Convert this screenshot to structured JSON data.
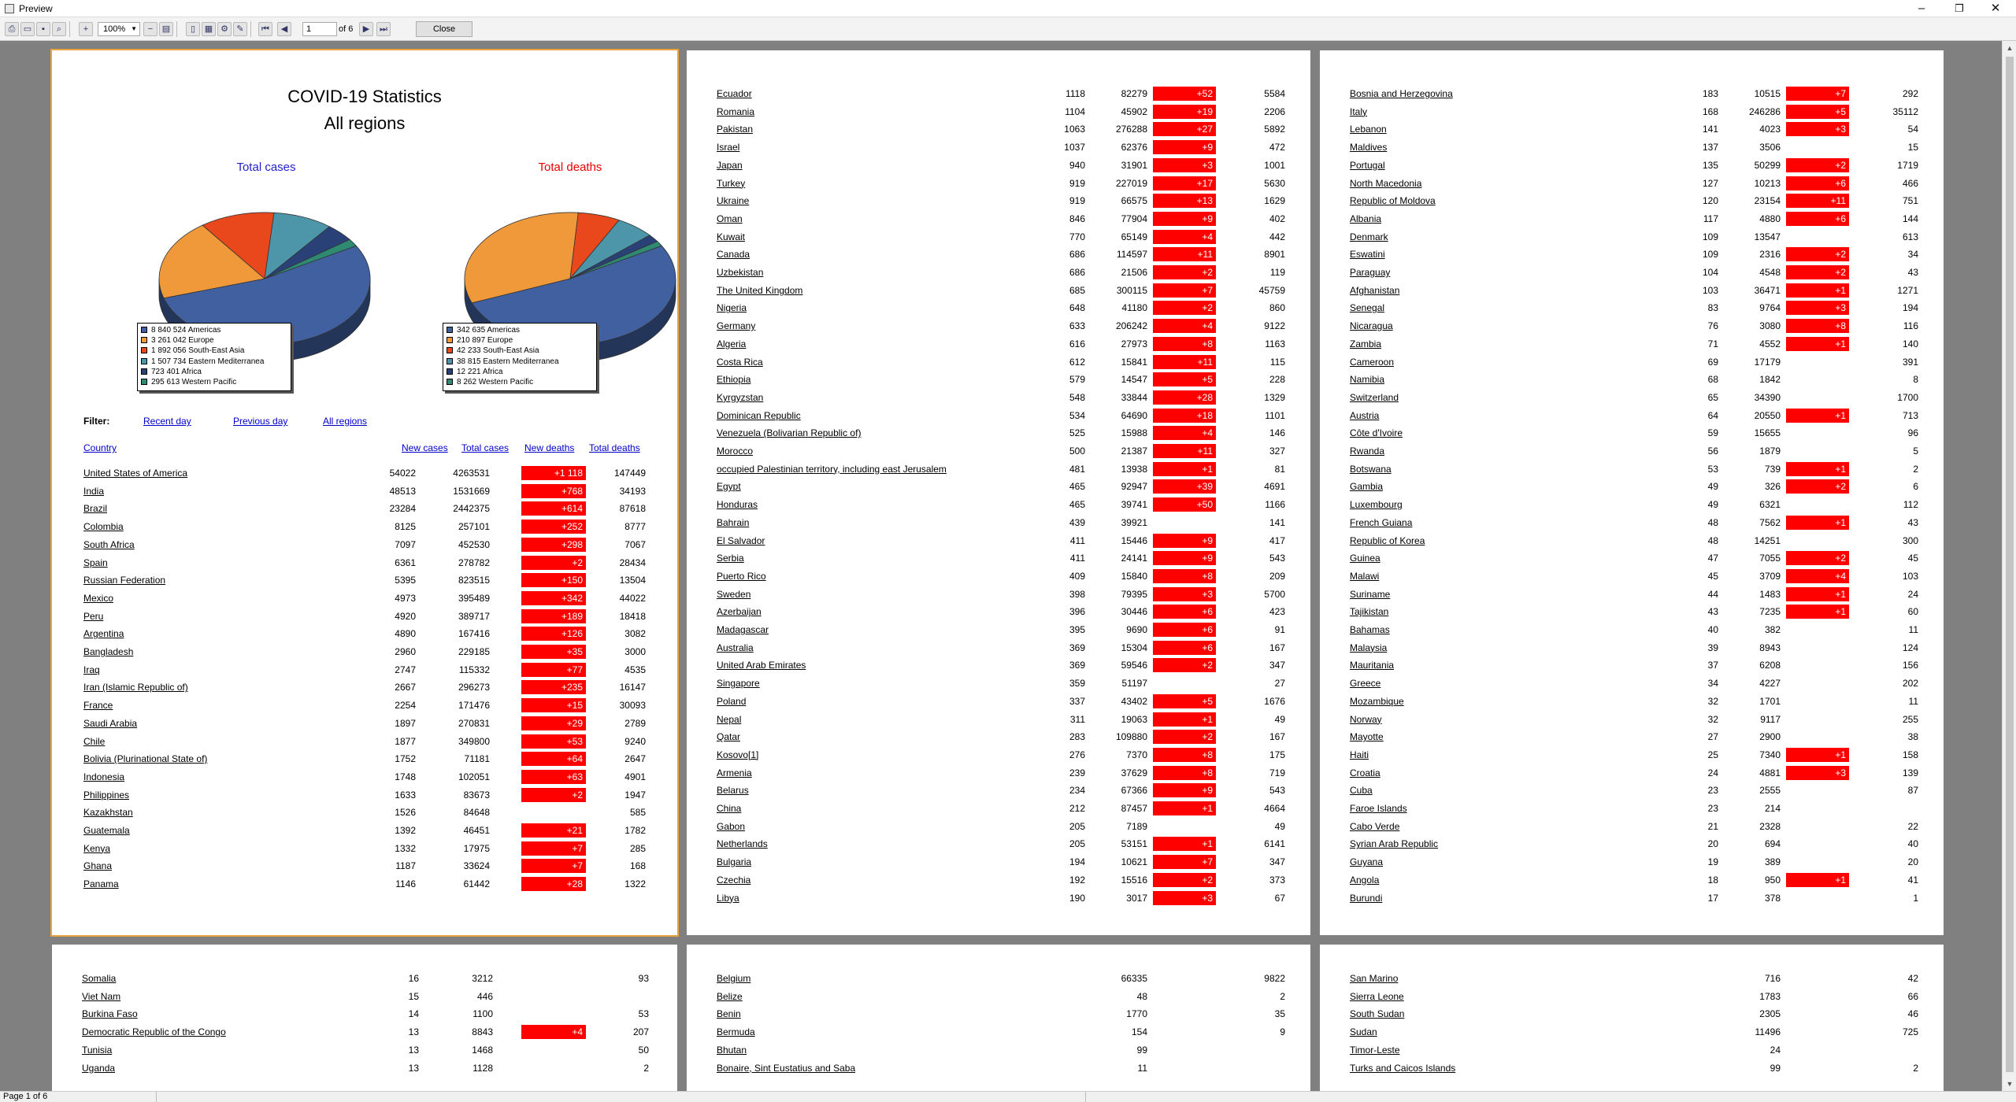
{
  "window": {
    "title": "Preview",
    "min_label": "–",
    "restore_label": "❐",
    "close_label": "✕"
  },
  "toolbar": {
    "zoom": "100%",
    "page": "1",
    "of_pages": "of 6",
    "close_label": "Close"
  },
  "status": {
    "text": "Page 1 of 6"
  },
  "report": {
    "title": "COVID-19 Statistics",
    "subtitle": "All regions",
    "cases_chart_title": "Total cases",
    "deaths_chart_title": "Total deaths",
    "filter_label": "Filter:",
    "filters": [
      "Recent day",
      "Previous day",
      "All regions"
    ],
    "columns": [
      "Country",
      "New cases",
      "Total cases",
      "New deaths",
      "Total deaths"
    ]
  },
  "chart_data": [
    {
      "type": "pie",
      "title": "Total cases",
      "legend_placement": "bottom-center",
      "labels": [
        "Americas",
        "Europe",
        "South-East Asia",
        "Eastern Mediterranea",
        "Africa",
        "Western Pacific"
      ],
      "values": [
        8840524,
        3261042,
        1892056,
        1507734,
        723401,
        295613
      ],
      "legend": [
        "8 840 524 Americas",
        "3 261 042 Europe",
        "1 892 056 South-East Asia",
        "1 507 734 Eastern Mediterranea",
        "723 401 Africa",
        "295 613 Western Pacific"
      ]
    },
    {
      "type": "pie",
      "title": "Total deaths",
      "legend_placement": "bottom-center",
      "labels": [
        "Americas",
        "Europe",
        "South-East Asia",
        "Eastern Mediterranea",
        "Africa",
        "Western Pacific"
      ],
      "values": [
        342635,
        210897,
        42233,
        38815,
        12221,
        8262
      ],
      "legend": [
        "342 635 Americas",
        "210 897 Europe",
        "42 233 South-East Asia",
        "38 815 Eastern Mediterranea",
        "12 221 Africa",
        "8 262 Western Pacific"
      ]
    }
  ],
  "colors": {
    "slices": [
      "#4060a0",
      "#f0993a",
      "#e8481c",
      "#4d95a8",
      "#2a4178",
      "#2e8a70"
    ],
    "new_deaths_bg": "#ff0000",
    "link": "#0000cc",
    "page_border": "#e8a33a"
  },
  "pages": [
    {
      "rows": [
        [
          "United States of America",
          "54022",
          "4263531",
          "+1 118",
          "147449"
        ],
        [
          "India",
          "48513",
          "1531669",
          "+768",
          "34193"
        ],
        [
          "Brazil",
          "23284",
          "2442375",
          "+614",
          "87618"
        ],
        [
          "Colombia",
          "8125",
          "257101",
          "+252",
          "8777"
        ],
        [
          "South Africa",
          "7097",
          "452530",
          "+298",
          "7067"
        ],
        [
          "Spain",
          "6361",
          "278782",
          "+2",
          "28434"
        ],
        [
          "Russian Federation",
          "5395",
          "823515",
          "+150",
          "13504"
        ],
        [
          "Mexico",
          "4973",
          "395489",
          "+342",
          "44022"
        ],
        [
          "Peru",
          "4920",
          "389717",
          "+189",
          "18418"
        ],
        [
          "Argentina",
          "4890",
          "167416",
          "+126",
          "3082"
        ],
        [
          "Bangladesh",
          "2960",
          "229185",
          "+35",
          "3000"
        ],
        [
          "Iraq",
          "2747",
          "115332",
          "+77",
          "4535"
        ],
        [
          "Iran (Islamic Republic of)",
          "2667",
          "296273",
          "+235",
          "16147"
        ],
        [
          "France",
          "2254",
          "171476",
          "+15",
          "30093"
        ],
        [
          "Saudi Arabia",
          "1897",
          "270831",
          "+29",
          "2789"
        ],
        [
          "Chile",
          "1877",
          "349800",
          "+53",
          "9240"
        ],
        [
          "Bolivia (Plurinational State of)",
          "1752",
          "71181",
          "+64",
          "2647"
        ],
        [
          "Indonesia",
          "1748",
          "102051",
          "+63",
          "4901"
        ],
        [
          "Philippines",
          "1633",
          "83673",
          "+2",
          "1947"
        ],
        [
          "Kazakhstan",
          "1526",
          "84648",
          "",
          "585"
        ],
        [
          "Guatemala",
          "1392",
          "46451",
          "+21",
          "1782"
        ],
        [
          "Kenya",
          "1332",
          "17975",
          "+7",
          "285"
        ],
        [
          "Ghana",
          "1187",
          "33624",
          "+7",
          "168"
        ],
        [
          "Panama",
          "1146",
          "61442",
          "+28",
          "1322"
        ]
      ]
    },
    {
      "rows": [
        [
          "Ecuador",
          "1118",
          "82279",
          "+52",
          "5584"
        ],
        [
          "Romania",
          "1104",
          "45902",
          "+19",
          "2206"
        ],
        [
          "Pakistan",
          "1063",
          "276288",
          "+27",
          "5892"
        ],
        [
          "Israel",
          "1037",
          "62376",
          "+9",
          "472"
        ],
        [
          "Japan",
          "940",
          "31901",
          "+3",
          "1001"
        ],
        [
          "Turkey",
          "919",
          "227019",
          "+17",
          "5630"
        ],
        [
          "Ukraine",
          "919",
          "66575",
          "+13",
          "1629"
        ],
        [
          "Oman",
          "846",
          "77904",
          "+9",
          "402"
        ],
        [
          "Kuwait",
          "770",
          "65149",
          "+4",
          "442"
        ],
        [
          "Canada",
          "686",
          "114597",
          "+11",
          "8901"
        ],
        [
          "Uzbekistan",
          "686",
          "21506",
          "+2",
          "119"
        ],
        [
          "The United Kingdom",
          "685",
          "300115",
          "+7",
          "45759"
        ],
        [
          "Nigeria",
          "648",
          "41180",
          "+2",
          "860"
        ],
        [
          "Germany",
          "633",
          "206242",
          "+4",
          "9122"
        ],
        [
          "Algeria",
          "616",
          "27973",
          "+8",
          "1163"
        ],
        [
          "Costa Rica",
          "612",
          "15841",
          "+11",
          "115"
        ],
        [
          "Ethiopia",
          "579",
          "14547",
          "+5",
          "228"
        ],
        [
          "Kyrgyzstan",
          "548",
          "33844",
          "+28",
          "1329"
        ],
        [
          "Dominican Republic",
          "534",
          "64690",
          "+18",
          "1101"
        ],
        [
          "Venezuela (Bolivarian Republic of)",
          "525",
          "15988",
          "+4",
          "146"
        ],
        [
          "Morocco",
          "500",
          "21387",
          "+11",
          "327"
        ],
        [
          "occupied Palestinian territory, including east Jerusalem",
          "481",
          "13938",
          "+1",
          "81"
        ],
        [
          "Egypt",
          "465",
          "92947",
          "+39",
          "4691"
        ],
        [
          "Honduras",
          "465",
          "39741",
          "+50",
          "1166"
        ],
        [
          "Bahrain",
          "439",
          "39921",
          "",
          "141"
        ],
        [
          "El Salvador",
          "411",
          "15446",
          "+9",
          "417"
        ],
        [
          "Serbia",
          "411",
          "24141",
          "+9",
          "543"
        ],
        [
          "Puerto Rico",
          "409",
          "15840",
          "+8",
          "209"
        ],
        [
          "Sweden",
          "398",
          "79395",
          "+3",
          "5700"
        ],
        [
          "Azerbaijan",
          "396",
          "30446",
          "+6",
          "423"
        ],
        [
          "Madagascar",
          "395",
          "9690",
          "+6",
          "91"
        ],
        [
          "Australia",
          "369",
          "15304",
          "+6",
          "167"
        ],
        [
          "United Arab Emirates",
          "369",
          "59546",
          "+2",
          "347"
        ],
        [
          "Singapore",
          "359",
          "51197",
          "",
          "27"
        ],
        [
          "Poland",
          "337",
          "43402",
          "+5",
          "1676"
        ],
        [
          "Nepal",
          "311",
          "19063",
          "+1",
          "49"
        ],
        [
          "Qatar",
          "283",
          "109880",
          "+2",
          "167"
        ],
        [
          "Kosovo[1]",
          "276",
          "7370",
          "+8",
          "175"
        ],
        [
          "Armenia",
          "239",
          "37629",
          "+8",
          "719"
        ],
        [
          "Belarus",
          "234",
          "67366",
          "+9",
          "543"
        ],
        [
          "China",
          "212",
          "87457",
          "+1",
          "4664"
        ],
        [
          "Gabon",
          "205",
          "7189",
          "",
          "49"
        ],
        [
          "Netherlands",
          "205",
          "53151",
          "+1",
          "6141"
        ],
        [
          "Bulgaria",
          "194",
          "10621",
          "+7",
          "347"
        ],
        [
          "Czechia",
          "192",
          "15516",
          "+2",
          "373"
        ],
        [
          "Libya",
          "190",
          "3017",
          "+3",
          "67"
        ]
      ]
    },
    {
      "rows": [
        [
          "Bosnia and Herzegovina",
          "183",
          "10515",
          "+7",
          "292"
        ],
        [
          "Italy",
          "168",
          "246286",
          "+5",
          "35112"
        ],
        [
          "Lebanon",
          "141",
          "4023",
          "+3",
          "54"
        ],
        [
          "Maldives",
          "137",
          "3506",
          "",
          "15"
        ],
        [
          "Portugal",
          "135",
          "50299",
          "+2",
          "1719"
        ],
        [
          "North Macedonia",
          "127",
          "10213",
          "+6",
          "466"
        ],
        [
          "Republic of Moldova",
          "120",
          "23154",
          "+11",
          "751"
        ],
        [
          "Albania",
          "117",
          "4880",
          "+6",
          "144"
        ],
        [
          "Denmark",
          "109",
          "13547",
          "",
          "613"
        ],
        [
          "Eswatini",
          "109",
          "2316",
          "+2",
          "34"
        ],
        [
          "Paraguay",
          "104",
          "4548",
          "+2",
          "43"
        ],
        [
          "Afghanistan",
          "103",
          "36471",
          "+1",
          "1271"
        ],
        [
          "Senegal",
          "83",
          "9764",
          "+3",
          "194"
        ],
        [
          "Nicaragua",
          "76",
          "3080",
          "+8",
          "116"
        ],
        [
          "Zambia",
          "71",
          "4552",
          "+1",
          "140"
        ],
        [
          "Cameroon",
          "69",
          "17179",
          "",
          "391"
        ],
        [
          "Namibia",
          "68",
          "1842",
          "",
          "8"
        ],
        [
          "Switzerland",
          "65",
          "34390",
          "",
          "1700"
        ],
        [
          "Austria",
          "64",
          "20550",
          "+1",
          "713"
        ],
        [
          "Côte d'Ivoire",
          "59",
          "15655",
          "",
          "96"
        ],
        [
          "Rwanda",
          "56",
          "1879",
          "",
          "5"
        ],
        [
          "Botswana",
          "53",
          "739",
          "+1",
          "2"
        ],
        [
          "Gambia",
          "49",
          "326",
          "+2",
          "6"
        ],
        [
          "Luxembourg",
          "49",
          "6321",
          "",
          "112"
        ],
        [
          "French Guiana",
          "48",
          "7562",
          "+1",
          "43"
        ],
        [
          "Republic of Korea",
          "48",
          "14251",
          "",
          "300"
        ],
        [
          "Guinea",
          "47",
          "7055",
          "+2",
          "45"
        ],
        [
          "Malawi",
          "45",
          "3709",
          "+4",
          "103"
        ],
        [
          "Suriname",
          "44",
          "1483",
          "+1",
          "24"
        ],
        [
          "Tajikistan",
          "43",
          "7235",
          "+1",
          "60"
        ],
        [
          "Bahamas",
          "40",
          "382",
          "",
          "11"
        ],
        [
          "Malaysia",
          "39",
          "8943",
          "",
          "124"
        ],
        [
          "Mauritania",
          "37",
          "6208",
          "",
          "156"
        ],
        [
          "Greece",
          "34",
          "4227",
          "",
          "202"
        ],
        [
          "Mozambique",
          "32",
          "1701",
          "",
          "11"
        ],
        [
          "Norway",
          "32",
          "9117",
          "",
          "255"
        ],
        [
          "Mayotte",
          "27",
          "2900",
          "",
          "38"
        ],
        [
          "Haiti",
          "25",
          "7340",
          "+1",
          "158"
        ],
        [
          "Croatia",
          "24",
          "4881",
          "+3",
          "139"
        ],
        [
          "Cuba",
          "23",
          "2555",
          "",
          "87"
        ],
        [
          "Faroe Islands",
          "23",
          "214",
          "",
          ""
        ],
        [
          "Cabo Verde",
          "21",
          "2328",
          "",
          "22"
        ],
        [
          "Syrian Arab Republic",
          "20",
          "694",
          "",
          "40"
        ],
        [
          "Guyana",
          "19",
          "389",
          "",
          "20"
        ],
        [
          "Angola",
          "18",
          "950",
          "+1",
          "41"
        ],
        [
          "Burundi",
          "17",
          "378",
          "",
          "1"
        ]
      ]
    },
    {
      "rows": [
        [
          "Somalia",
          "16",
          "3212",
          "",
          "93"
        ],
        [
          "Viet Nam",
          "15",
          "446",
          "",
          ""
        ],
        [
          "Burkina Faso",
          "14",
          "1100",
          "",
          "53"
        ],
        [
          "Democratic Republic of the Congo",
          "13",
          "8843",
          "+4",
          "207"
        ],
        [
          "Tunisia",
          "13",
          "1468",
          "",
          "50"
        ],
        [
          "Uganda",
          "13",
          "1128",
          "",
          "2"
        ]
      ]
    },
    {
      "rows": [
        [
          "Belgium",
          "",
          "66335",
          "",
          "9822"
        ],
        [
          "Belize",
          "",
          "48",
          "",
          "2"
        ],
        [
          "Benin",
          "",
          "1770",
          "",
          "35"
        ],
        [
          "Bermuda",
          "",
          "154",
          "",
          "9"
        ],
        [
          "Bhutan",
          "",
          "99",
          "",
          ""
        ],
        [
          "Bonaire, Sint Eustatius and Saba",
          "",
          "11",
          "",
          ""
        ]
      ]
    },
    {
      "rows": [
        [
          "San Marino",
          "",
          "716",
          "",
          "42"
        ],
        [
          "Sierra Leone",
          "",
          "1783",
          "",
          "66"
        ],
        [
          "South Sudan",
          "",
          "2305",
          "",
          "46"
        ],
        [
          "Sudan",
          "",
          "11496",
          "",
          "725"
        ],
        [
          "Timor-Leste",
          "",
          "24",
          "",
          ""
        ],
        [
          "Turks and Caicos Islands",
          "",
          "99",
          "",
          "2"
        ]
      ]
    }
  ]
}
